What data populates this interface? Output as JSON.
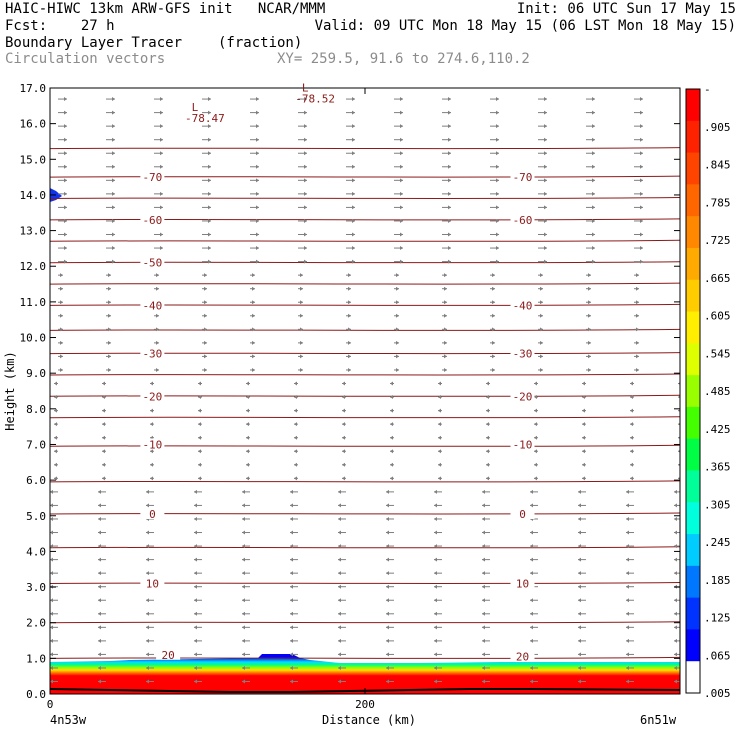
{
  "header": {
    "line1_left": "HAIC-HIWC 13km ARW-GFS init   NCAR/MMM",
    "line1_right": "Init: 06 UTC Sun 17 May 15",
    "line2_left": "Fcst:    27 h",
    "line2_right": "Valid: 09 UTC Mon 18 May 15 (06 LST Mon 18 May 15)",
    "line3_field": "Boundary Layer Tracer",
    "line3_units": "(fraction)",
    "line4_field": "Circulation vectors",
    "line4_xy": "XY= 259.5, 91.6 to 274.6,110.2"
  },
  "chart_data": {
    "type": "cross-section",
    "xlabel": "Distance (km)",
    "ylabel": "Height (km)",
    "xlim": [
      0,
      400
    ],
    "ylim": [
      0,
      17
    ],
    "x_ticks": [
      0,
      200
    ],
    "y_ticks": [
      "0.0",
      "1.0",
      "2.0",
      "3.0",
      "4.0",
      "5.0",
      "6.0",
      "7.0",
      "8.0",
      "9.0",
      "10.0",
      "11.0",
      "12.0",
      "13.0",
      "14.0",
      "15.0",
      "16.0",
      "17.0"
    ],
    "endpoints": {
      "left": "4n53w",
      "right": "6n51w"
    },
    "contour_labels": [
      {
        "label": "-70",
        "x": 65,
        "y": 14.5
      },
      {
        "label": "-70",
        "x": 300,
        "y": 14.5
      },
      {
        "label": "-60",
        "x": 65,
        "y": 13.3
      },
      {
        "label": "-60",
        "x": 300,
        "y": 13.3
      },
      {
        "label": "-50",
        "x": 65,
        "y": 12.1
      },
      {
        "label": "-40",
        "x": 65,
        "y": 10.9
      },
      {
        "label": "-40",
        "x": 300,
        "y": 10.9
      },
      {
        "label": "-30",
        "x": 65,
        "y": 9.55
      },
      {
        "label": "-30",
        "x": 300,
        "y": 9.55
      },
      {
        "label": "-20",
        "x": 65,
        "y": 8.35
      },
      {
        "label": "-20",
        "x": 300,
        "y": 8.35
      },
      {
        "label": "-10",
        "x": 65,
        "y": 7.0
      },
      {
        "label": "-10",
        "x": 300,
        "y": 7.0
      },
      {
        "label": "0",
        "x": 65,
        "y": 5.05
      },
      {
        "label": "0",
        "x": 300,
        "y": 5.05
      },
      {
        "label": "10",
        "x": 65,
        "y": 3.1
      },
      {
        "label": "10",
        "x": 300,
        "y": 3.1
      },
      {
        "label": "20",
        "x": 75,
        "y": 1.1
      },
      {
        "label": "20",
        "x": 300,
        "y": 1.05
      }
    ],
    "lows": [
      {
        "marker": "L",
        "value": "-78.47",
        "x": 92,
        "y": 16.35
      },
      {
        "marker": "L",
        "value": "-78.52",
        "x": 162,
        "y": 16.9
      }
    ],
    "colorbar": {
      "labels": [
        "-",
        ".905",
        ".845",
        ".785",
        ".725",
        ".665",
        ".605",
        ".545",
        ".485",
        ".425",
        ".365",
        ".305",
        ".245",
        ".185",
        ".125",
        ".065",
        ".005"
      ],
      "colors": [
        "#ff0000",
        "#ff2200",
        "#ff4400",
        "#ff6600",
        "#ff8800",
        "#ffaa00",
        "#ffcc00",
        "#ffee00",
        "#ddff00",
        "#99ff00",
        "#44ff00",
        "#00ff44",
        "#00ff99",
        "#00ffdd",
        "#00ccff",
        "#0077ff",
        "#0033ff",
        "#0000ff",
        "#ffffff"
      ]
    },
    "colors": {
      "contour": "#8b1a1a",
      "vector": "#7f7f7f",
      "terrain": "#000000"
    }
  }
}
